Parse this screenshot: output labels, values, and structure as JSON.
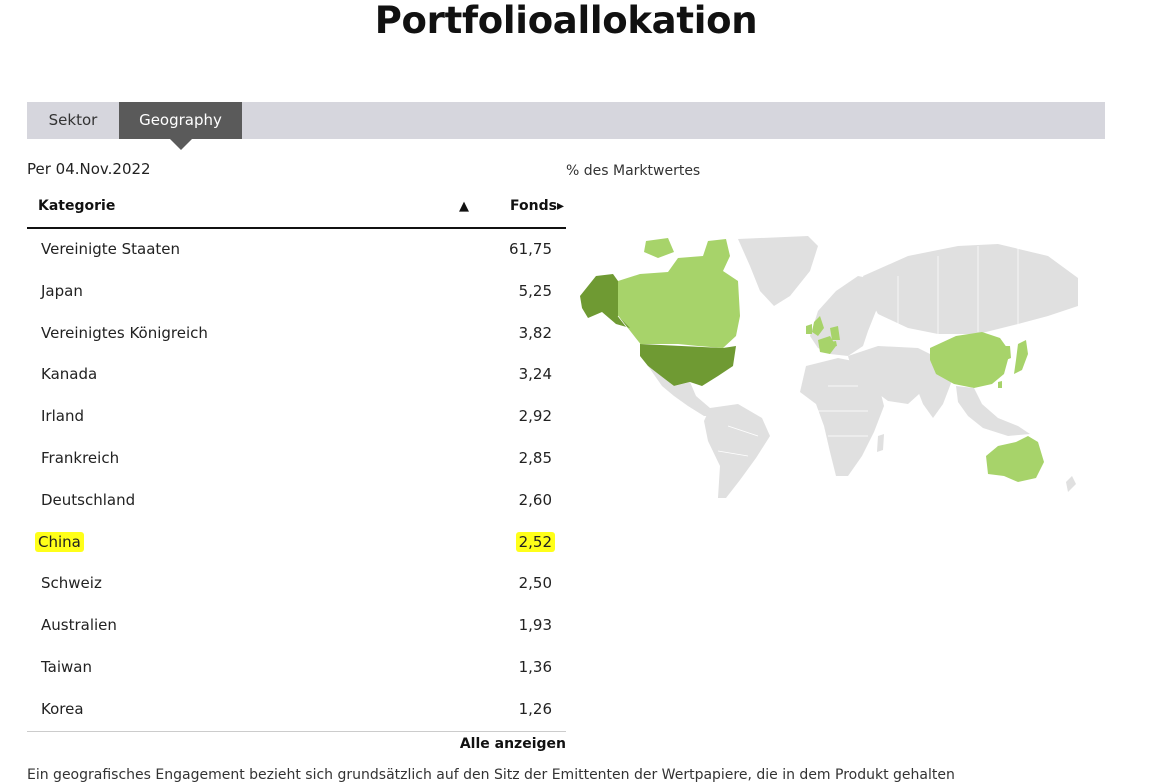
{
  "title": "Portfolioallokation",
  "tabs": [
    {
      "label": "Sektor",
      "active": false
    },
    {
      "label": "Geography",
      "active": true
    }
  ],
  "as_of": "Per 04.Nov.2022",
  "map_caption": "% des Marktwertes",
  "table": {
    "col_category": "Kategorie",
    "col_sort_indicator": "▲",
    "col_fund": "Fonds▸",
    "rows": [
      {
        "name": "Vereinigte Staaten",
        "value": "61,75"
      },
      {
        "name": "Japan",
        "value": "5,25"
      },
      {
        "name": "Vereinigtes Königreich",
        "value": "3,82"
      },
      {
        "name": "Kanada",
        "value": "3,24"
      },
      {
        "name": "Irland",
        "value": "2,92"
      },
      {
        "name": "Frankreich",
        "value": "2,85"
      },
      {
        "name": "Deutschland",
        "value": "2,60"
      },
      {
        "name": "China",
        "value": "2,52",
        "highlighted": true
      },
      {
        "name": "Schweiz",
        "value": "2,50"
      },
      {
        "name": "Australien",
        "value": "1,93"
      },
      {
        "name": "Taiwan",
        "value": "1,36"
      },
      {
        "name": "Korea",
        "value": "1,26"
      }
    ],
    "show_all": "Alle anzeigen"
  },
  "footnote": "Ein geografisches Engagement bezieht sich grundsätzlich auf den Sitz der Emittenten der Wertpapiere, die in dem Produkt gehalten",
  "colors": {
    "tab_active": "#5a5a5a",
    "tab_bar": "#d6d6dd",
    "map_dark": "#6f9a33",
    "map_light": "#a7d36a",
    "map_gray": "#e0e0e0",
    "highlight": "#ffff00"
  }
}
